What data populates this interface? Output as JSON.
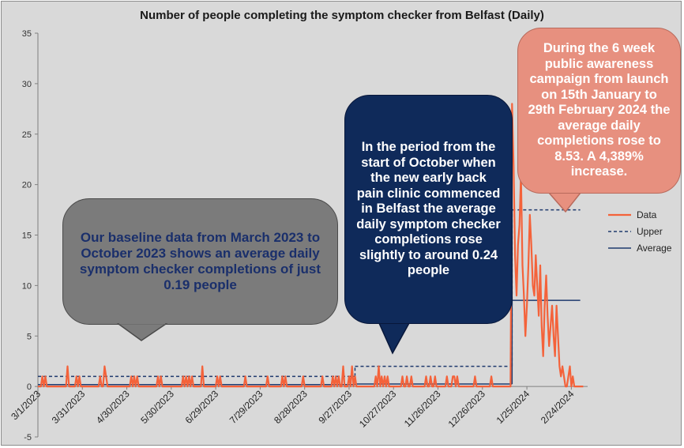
{
  "chart_data": {
    "type": "line",
    "title": "Number of people completing the symptom checker from Belfast (Daily)",
    "xlabel": "",
    "ylabel": "",
    "ylim": [
      -5,
      35
    ],
    "yticks": [
      -5,
      0,
      5,
      10,
      15,
      20,
      25,
      30,
      35
    ],
    "xlim": [
      "3/1/2023",
      "3/6/2024"
    ],
    "xtick_labels": [
      "3/1/2023",
      "3/31/2023",
      "4/30/2023",
      "5/30/2023",
      "6/29/2023",
      "7/29/2023",
      "8/28/2023",
      "9/27/2023",
      "10/27/2023",
      "11/26/2023",
      "12/26/2023",
      "1/25/2024",
      "2/24/2024"
    ],
    "legend": {
      "position": "right",
      "entries": [
        "Data",
        "Upper",
        "Average"
      ]
    },
    "series": [
      {
        "name": "Data",
        "color": "#f4623a",
        "style": "solid",
        "nonzero_days": [
          {
            "date": "3/4/2023",
            "value": 1
          },
          {
            "date": "3/6/2023",
            "value": 1
          },
          {
            "date": "3/21/2023",
            "value": 2
          },
          {
            "date": "3/27/2023",
            "value": 1
          },
          {
            "date": "3/29/2023",
            "value": 1
          },
          {
            "date": "4/12/2023",
            "value": 1
          },
          {
            "date": "4/15/2023",
            "value": 2
          },
          {
            "date": "4/16/2023",
            "value": 1
          },
          {
            "date": "5/3/2023",
            "value": 1
          },
          {
            "date": "5/5/2023",
            "value": 1
          },
          {
            "date": "5/7/2023",
            "value": 1
          },
          {
            "date": "5/21/2023",
            "value": 1
          },
          {
            "date": "5/23/2023",
            "value": 1
          },
          {
            "date": "6/7/2023",
            "value": 1
          },
          {
            "date": "6/9/2023",
            "value": 1
          },
          {
            "date": "6/11/2023",
            "value": 1
          },
          {
            "date": "6/13/2023",
            "value": 1
          },
          {
            "date": "6/20/2023",
            "value": 2
          },
          {
            "date": "6/30/2023",
            "value": 1
          },
          {
            "date": "7/2/2023",
            "value": 1
          },
          {
            "date": "7/19/2023",
            "value": 1
          },
          {
            "date": "8/3/2023",
            "value": 1
          },
          {
            "date": "8/13/2023",
            "value": 1
          },
          {
            "date": "8/15/2023",
            "value": 1
          },
          {
            "date": "8/27/2023",
            "value": 1
          },
          {
            "date": "9/9/2023",
            "value": 1
          },
          {
            "date": "9/16/2023",
            "value": 1
          },
          {
            "date": "9/18/2023",
            "value": 1
          },
          {
            "date": "9/20/2023",
            "value": 1
          },
          {
            "date": "9/23/2023",
            "value": 2
          },
          {
            "date": "9/27/2023",
            "value": 1
          },
          {
            "date": "9/29/2023",
            "value": 2
          },
          {
            "date": "10/1/2023",
            "value": 1
          },
          {
            "date": "10/15/2023",
            "value": 1
          },
          {
            "date": "10/17/2023",
            "value": 2
          },
          {
            "date": "10/19/2023",
            "value": 1
          },
          {
            "date": "10/21/2023",
            "value": 1
          },
          {
            "date": "10/23/2023",
            "value": 1
          },
          {
            "date": "11/2/2023",
            "value": 1
          },
          {
            "date": "11/5/2023",
            "value": 1
          },
          {
            "date": "11/8/2023",
            "value": 1
          },
          {
            "date": "11/18/2023",
            "value": 1
          },
          {
            "date": "11/21/2023",
            "value": 1
          },
          {
            "date": "11/24/2023",
            "value": 1
          },
          {
            "date": "12/2/2023",
            "value": 1
          },
          {
            "date": "12/6/2023",
            "value": 1
          },
          {
            "date": "12/7/2023",
            "value": 1
          },
          {
            "date": "12/9/2023",
            "value": 1
          },
          {
            "date": "12/21/2023",
            "value": 1
          },
          {
            "date": "1/1/2024",
            "value": 1
          },
          {
            "date": "1/15/2024",
            "value": 28
          },
          {
            "date": "1/16/2024",
            "value": 22
          },
          {
            "date": "1/17/2024",
            "value": 13
          },
          {
            "date": "1/18/2024",
            "value": 9
          },
          {
            "date": "1/19/2024",
            "value": 14
          },
          {
            "date": "1/20/2024",
            "value": 16
          },
          {
            "date": "1/21/2024",
            "value": 21
          },
          {
            "date": "1/22/2024",
            "value": 12
          },
          {
            "date": "1/23/2024",
            "value": 9
          },
          {
            "date": "1/24/2024",
            "value": 5
          },
          {
            "date": "1/25/2024",
            "value": 8
          },
          {
            "date": "1/26/2024",
            "value": 12
          },
          {
            "date": "1/27/2024",
            "value": 17
          },
          {
            "date": "1/28/2024",
            "value": 14
          },
          {
            "date": "1/29/2024",
            "value": 10
          },
          {
            "date": "1/30/2024",
            "value": 9
          },
          {
            "date": "1/31/2024",
            "value": 13
          },
          {
            "date": "2/1/2024",
            "value": 10
          },
          {
            "date": "2/2/2024",
            "value": 7
          },
          {
            "date": "2/3/2024",
            "value": 12
          },
          {
            "date": "2/4/2024",
            "value": 6
          },
          {
            "date": "2/5/2024",
            "value": 3
          },
          {
            "date": "2/6/2024",
            "value": 8
          },
          {
            "date": "2/7/2024",
            "value": 11
          },
          {
            "date": "2/8/2024",
            "value": 7
          },
          {
            "date": "2/9/2024",
            "value": 4
          },
          {
            "date": "2/10/2024",
            "value": 6
          },
          {
            "date": "2/11/2024",
            "value": 8
          },
          {
            "date": "2/12/2024",
            "value": 5
          },
          {
            "date": "2/13/2024",
            "value": 3
          },
          {
            "date": "2/14/2024",
            "value": 8
          },
          {
            "date": "2/15/2024",
            "value": 5
          },
          {
            "date": "2/16/2024",
            "value": 2
          },
          {
            "date": "2/17/2024",
            "value": 1
          },
          {
            "date": "2/18/2024",
            "value": 2
          },
          {
            "date": "2/19/2024",
            "value": 1
          },
          {
            "date": "2/22/2024",
            "value": 1
          },
          {
            "date": "2/23/2024",
            "value": 2
          },
          {
            "date": "2/25/2024",
            "value": 1
          }
        ]
      },
      {
        "name": "Upper",
        "color": "#1f3a6e",
        "style": "dashed",
        "segments": [
          {
            "from": "3/1/2023",
            "to": "9/30/2023",
            "value": 1.0
          },
          {
            "from": "10/1/2023",
            "to": "1/14/2024",
            "value": 2.0
          },
          {
            "from": "1/15/2024",
            "to": "2/29/2024",
            "value": 17.5
          }
        ]
      },
      {
        "name": "Average",
        "color": "#1f3a6e",
        "style": "solid",
        "segments": [
          {
            "from": "3/1/2023",
            "to": "9/30/2023",
            "value": 0.19
          },
          {
            "from": "10/1/2023",
            "to": "1/14/2024",
            "value": 0.24
          },
          {
            "from": "1/15/2024",
            "to": "2/29/2024",
            "value": 8.53
          }
        ]
      }
    ]
  },
  "callouts": {
    "baseline": "Our baseline data from March 2023 to October 2023 shows an average daily symptom checker completions of just 0.19 people",
    "clinic": "In the period from the start of October when the new early back pain clinic commenced in Belfast the average daily symptom checker completions rose slightly to around 0.24 people",
    "campaign": "During the 6 week public awareness campaign from launch on 15th January to 29th February 2024 the average daily completions rose to 8.53. A 4,389% increase."
  },
  "colors": {
    "background": "#d9d9d9",
    "data_line": "#f4623a",
    "reference_lines": "#1f3a6e",
    "callout_baseline": "#7b7b7b",
    "callout_clinic": "#0f2a5a",
    "callout_campaign": "#e7907f"
  }
}
